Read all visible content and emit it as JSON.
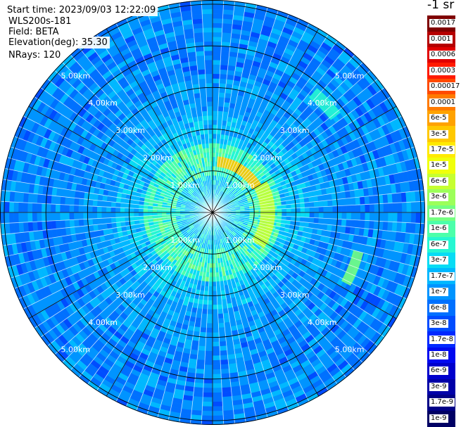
{
  "info": {
    "start_time": "Start time: 2023/09/03 12:22:09",
    "instrument": "WLS200s-181",
    "field": "Field: BETA",
    "elevation": "Elevation(deg): 35.30",
    "nrays": "NRays: 120"
  },
  "chart_data": {
    "type": "heatmap",
    "subtype": "polar-ppi",
    "field": "BETA",
    "elevation_deg": 35.3,
    "n_rays": 120,
    "range_labels": [
      "1.00km",
      "2.00km",
      "3.00km",
      "4.00km",
      "5.00km"
    ],
    "range_rings_km": [
      1,
      2,
      3,
      4,
      5
    ],
    "max_range_km": 5.1,
    "spokes_deg": [
      0,
      30,
      60,
      90,
      120,
      150,
      180,
      210,
      240,
      270,
      300,
      330
    ],
    "colorbar": {
      "unit_label": "-1 sr",
      "levels": [
        "0.0017",
        "0.001",
        "0.0006",
        "0.0003",
        "0.00017",
        "0.0001",
        "6e-5",
        "3e-5",
        "1.7e-5",
        "1e-5",
        "6e-6",
        "3e-6",
        "1.7e-6",
        "1e-6",
        "6e-7",
        "3e-7",
        "1.7e-7",
        "1e-7",
        "6e-8",
        "3e-8",
        "1.7e-8",
        "1e-8",
        "6e-9",
        "3e-9",
        "1.7e-9",
        "1e-9"
      ],
      "colors": [
        "#7f0000",
        "#b50000",
        "#e00000",
        "#ff1a00",
        "#ff4a00",
        "#ff7a00",
        "#ffa200",
        "#ffc800",
        "#ffea00",
        "#f0ff0a",
        "#c6ff30",
        "#9cff5a",
        "#74ff82",
        "#4cffaa",
        "#26f7d2",
        "#08dcf4",
        "#00b8ff",
        "#0094ff",
        "#0070ff",
        "#004cff",
        "#0028ff",
        "#0008f0",
        "#0000cc",
        "#0000a8",
        "#000086",
        "#000064"
      ]
    },
    "features": [
      {
        "type": "arc",
        "r_min_km": 1.15,
        "r_max_km": 1.5,
        "az_start_deg": 60,
        "az_end_deg": 125,
        "level": "6e-6"
      },
      {
        "type": "arc",
        "r_min_km": 1.1,
        "r_max_km": 1.35,
        "az_start_deg": 5,
        "az_end_deg": 60,
        "level": "3e-5"
      },
      {
        "type": "arc",
        "r_min_km": 3.6,
        "r_max_km": 3.9,
        "az_start_deg": 40,
        "az_end_deg": 52,
        "level": "6e-7"
      },
      {
        "type": "arc",
        "r_min_km": 3.5,
        "r_max_km": 3.75,
        "az_start_deg": 105,
        "az_end_deg": 118,
        "level": "1.7e-6"
      }
    ]
  }
}
